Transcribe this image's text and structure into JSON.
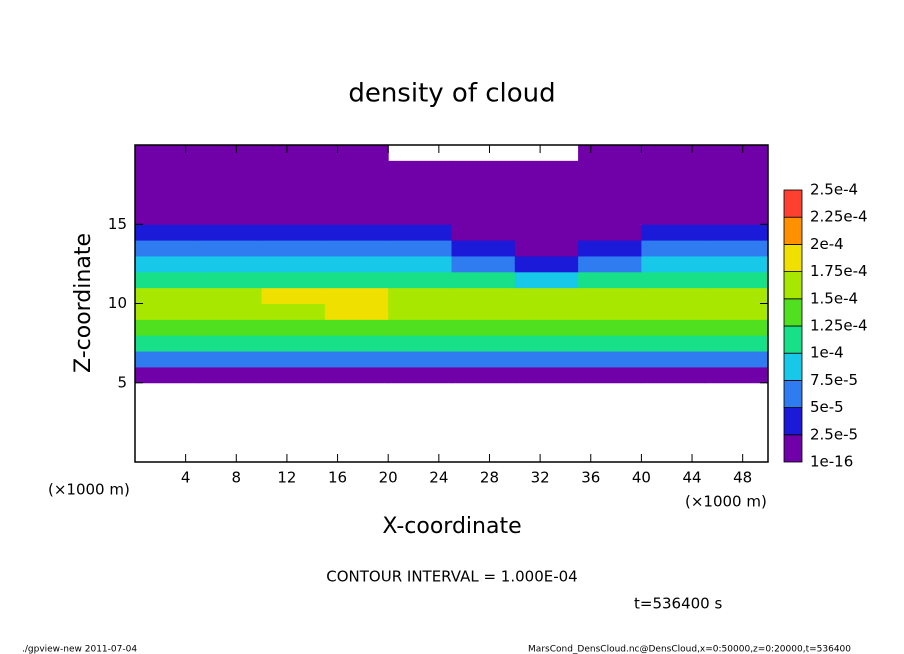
{
  "chart_data": {
    "type": "heatmap",
    "title": "density of cloud",
    "xlabel": "X-coordinate",
    "ylabel": "Z-coordinate",
    "x_unit_left": "(×1000 m)",
    "x_unit_right": "(×1000 m)",
    "contour_note": "CONTOUR INTERVAL = 1.000E-04",
    "time_note": "t=536400 s",
    "footer_left": "./gpview-new  2011-07-04",
    "footer_right": "MarsCond_DensCloud.nc@DensCloud,x=0:50000,z=0:20000,t=536400",
    "xlim": [
      0,
      50
    ],
    "ylim": [
      0,
      20
    ],
    "xticks": [
      4,
      8,
      12,
      16,
      20,
      24,
      28,
      32,
      36,
      40,
      44,
      48
    ],
    "yticks": [
      5,
      10,
      15
    ],
    "xbins": [
      0,
      5,
      10,
      15,
      20,
      25,
      30,
      35,
      40,
      45,
      50
    ],
    "zbins": [
      0,
      1,
      2,
      3,
      4,
      5,
      6,
      7,
      8,
      9,
      10,
      11,
      12,
      13,
      14,
      15,
      16,
      17,
      18,
      19,
      20
    ],
    "values": [
      [
        null,
        null,
        null,
        null,
        null,
        null,
        null,
        null,
        null,
        null
      ],
      [
        null,
        null,
        null,
        null,
        null,
        null,
        null,
        null,
        null,
        null
      ],
      [
        null,
        null,
        null,
        null,
        null,
        null,
        null,
        null,
        null,
        null
      ],
      [
        null,
        null,
        null,
        null,
        null,
        null,
        null,
        null,
        null,
        null
      ],
      [
        null,
        null,
        null,
        null,
        null,
        null,
        null,
        null,
        null,
        null
      ],
      [
        2e-05,
        2e-05,
        2e-05,
        2e-05,
        2e-05,
        2e-05,
        2e-05,
        2e-05,
        2e-05,
        2e-05
      ],
      [
        7e-05,
        7e-05,
        7e-05,
        7e-05,
        7e-05,
        7e-05,
        7e-05,
        7e-05,
        7e-05,
        7e-05
      ],
      [
        0.0001,
        0.0001,
        0.0001,
        0.0001,
        0.0001,
        0.0001,
        0.0001,
        0.0001,
        0.0001,
        0.0001
      ],
      [
        0.00013,
        0.00013,
        0.00013,
        0.00013,
        0.00013,
        0.00013,
        0.00013,
        0.00013,
        0.00013,
        0.00013
      ],
      [
        0.00016,
        0.00016,
        0.00017,
        0.00018,
        0.00016,
        0.00016,
        0.00016,
        0.00015,
        0.00015,
        0.00015
      ],
      [
        0.00016,
        0.00016,
        0.00019,
        0.00019,
        0.00016,
        0.00017,
        0.00015,
        0.00015,
        0.00015,
        0.00015
      ],
      [
        0.00012,
        0.00012,
        0.00012,
        0.00012,
        0.00012,
        0.00011,
        9e-05,
        0.00011,
        0.00012,
        0.00012
      ],
      [
        9e-05,
        9e-05,
        9e-05,
        9e-05,
        8e-05,
        5e-05,
        4e-05,
        6e-05,
        9e-05,
        9e-05
      ],
      [
        6e-05,
        6e-05,
        6e-05,
        6e-05,
        5e-05,
        3e-05,
        2e-05,
        3e-05,
        6e-05,
        6e-05
      ],
      [
        4e-05,
        4e-05,
        4e-05,
        4e-05,
        3e-05,
        2e-05,
        1e-05,
        2e-05,
        4e-05,
        4e-05
      ],
      [
        2e-05,
        2e-05,
        2e-05,
        2e-05,
        1e-05,
        1e-05,
        1e-05,
        1e-05,
        2e-05,
        2e-05
      ],
      [
        1e-05,
        1e-05,
        1e-05,
        1e-05,
        1e-05,
        1e-05,
        1e-05,
        1e-05,
        1e-05,
        1e-05
      ],
      [
        5e-06,
        5e-06,
        5e-06,
        5e-06,
        5e-06,
        5e-06,
        5e-06,
        5e-06,
        5e-06,
        5e-06
      ],
      [
        5e-06,
        5e-06,
        5e-06,
        5e-06,
        5e-06,
        5e-06,
        5e-06,
        5e-06,
        5e-06,
        5e-06
      ],
      [
        5e-06,
        5e-06,
        5e-06,
        5e-06,
        null,
        null,
        null,
        5e-06,
        5e-06,
        5e-06
      ]
    ],
    "levels": [
      1e-16,
      {
        "value": 2.5e-05,
        "label": "2.5e-5"
      },
      {
        "value": 5e-05,
        "label": "5e-5"
      },
      {
        "value": 7.5e-05,
        "label": "7.5e-5"
      },
      {
        "value": 0.0001,
        "label": "1e-4"
      },
      {
        "value": 0.000125,
        "label": "1.25e-4"
      },
      {
        "value": 0.00015,
        "label": "1.5e-4"
      },
      {
        "value": 0.000175,
        "label": "1.75e-4"
      },
      {
        "value": 0.0002,
        "label": "2e-4"
      },
      {
        "value": 0.000225,
        "label": "2.25e-4"
      },
      {
        "value": 0.00025,
        "label": "2.5e-4"
      }
    ],
    "colors": [
      "#7000a8",
      "#1a1ad8",
      "#2f7cf0",
      "#18c8e8",
      "#18e088",
      "#50e020",
      "#a8e800",
      "#f0e000",
      "#ff9000",
      "#ff4030"
    ]
  }
}
